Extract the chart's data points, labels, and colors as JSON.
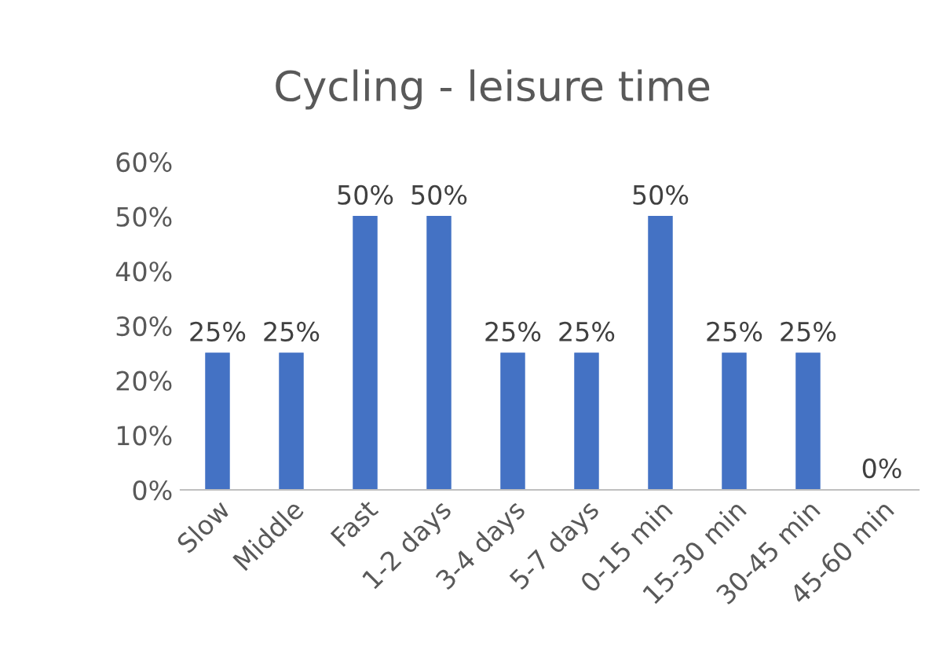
{
  "chart_data": {
    "type": "bar",
    "title": "Cycling - leisure time",
    "categories": [
      "Slow",
      "Middle",
      "Fast",
      "1-2 days",
      "3-4 days",
      "5-7 days",
      "0-15 min",
      "15-30 min",
      "30-45 min",
      "45-60 min"
    ],
    "values": [
      25,
      25,
      50,
      50,
      25,
      25,
      50,
      25,
      25,
      0
    ],
    "value_labels": [
      "25%",
      "25%",
      "50%",
      "50%",
      "25%",
      "25%",
      "50%",
      "25%",
      "25%",
      "0%"
    ],
    "color": "#4472c4",
    "ylim": [
      0,
      60
    ],
    "yticks": [
      {
        "value": 0,
        "label": "0%"
      },
      {
        "value": 10,
        "label": "10%"
      },
      {
        "value": 20,
        "label": "20%"
      },
      {
        "value": 30,
        "label": "30%"
      },
      {
        "value": 40,
        "label": "40%"
      },
      {
        "value": 50,
        "label": "50%"
      },
      {
        "value": 60,
        "label": "60%"
      }
    ],
    "grid": false,
    "legend": false
  }
}
